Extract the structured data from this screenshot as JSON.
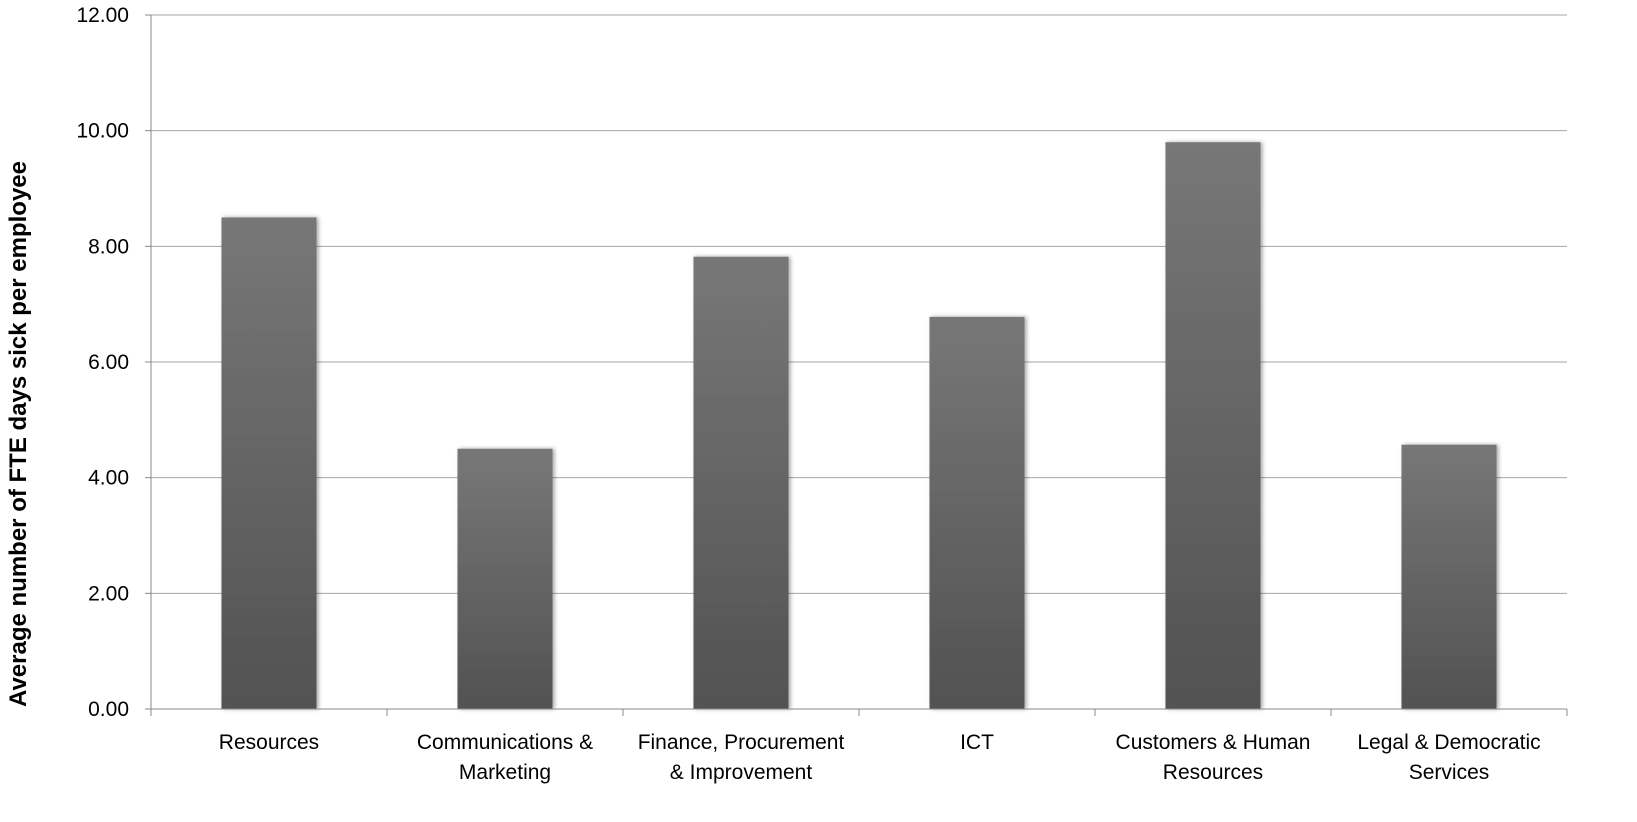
{
  "chart_data": {
    "type": "bar",
    "title": "",
    "xlabel": "",
    "ylabel": "Average number of FTE days sick per employee",
    "ylim": [
      0,
      12
    ],
    "yticks": [
      "0.00",
      "2.00",
      "4.00",
      "6.00",
      "8.00",
      "10.00",
      "12.00"
    ],
    "grid": true,
    "categories": [
      [
        "Resources"
      ],
      [
        "Communications &",
        "Marketing"
      ],
      [
        "Finance, Procurement",
        "& Improvement"
      ],
      [
        "ICT"
      ],
      [
        "Customers & Human",
        "Resources"
      ],
      [
        "Legal & Democratic",
        "Services"
      ]
    ],
    "values": [
      8.5,
      4.5,
      7.82,
      6.78,
      9.8,
      4.57
    ],
    "bar_color_top": "#777777",
    "bar_color_bottom": "#525252",
    "grid_color": "#a6a6a6"
  }
}
